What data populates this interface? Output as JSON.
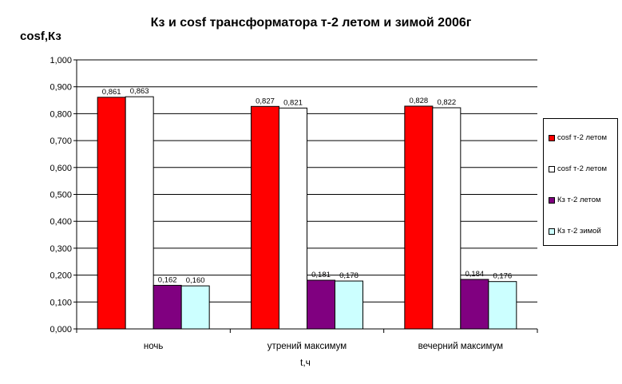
{
  "chart_data": {
    "type": "bar",
    "title": "Кз и cosf трансформатора т-2 летом и зимой 2006г",
    "ylabel": "cosf,Кз",
    "xlabel": "t,ч",
    "categories": [
      "ночь",
      "утрений максимум",
      "вечерний максимум"
    ],
    "ylim": [
      0,
      1
    ],
    "yticks": [
      "0,000",
      "0,100",
      "0,200",
      "0,300",
      "0,400",
      "0,500",
      "0,600",
      "0,700",
      "0,800",
      "0,900",
      "1,000"
    ],
    "grid": true,
    "legend_position": "right",
    "series": [
      {
        "name": "cosf т-2 летом",
        "color": "#ff0000",
        "values": [
          0.861,
          0.827,
          0.828
        ],
        "labels": [
          "0,861",
          "0,827",
          "0,828"
        ]
      },
      {
        "name": "cosf т-2 летом",
        "color": "#ffffff",
        "values": [
          0.863,
          0.821,
          0.822
        ],
        "labels": [
          "0,863",
          "0,821",
          "0,822"
        ]
      },
      {
        "name": "Кз т-2 летом",
        "color": "#800080",
        "values": [
          0.162,
          0.181,
          0.184
        ],
        "labels": [
          "0,162",
          "0,181",
          "0,184"
        ]
      },
      {
        "name": "Кз т-2 зимой",
        "color": "#ccffff",
        "values": [
          0.16,
          0.178,
          0.176
        ],
        "labels": [
          "0,160",
          "0,178",
          "0,176"
        ]
      }
    ]
  }
}
